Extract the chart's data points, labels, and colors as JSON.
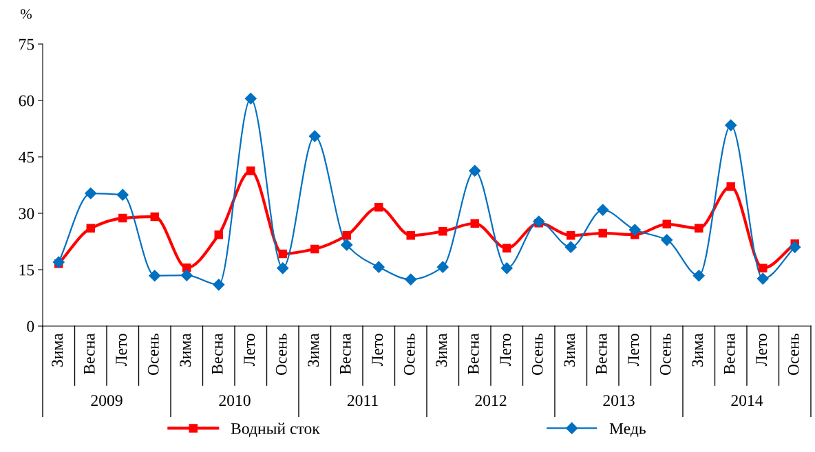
{
  "chart_data": {
    "type": "line",
    "ylabel": "%",
    "categories": [
      "Зима",
      "Весна",
      "Лето",
      "Осень",
      "Зима",
      "Весна",
      "Лето",
      "Осень",
      "Зима",
      "Весна",
      "Лето",
      "Осень",
      "Зима",
      "Весна",
      "Лето",
      "Осень",
      "Зима",
      "Весна",
      "Лето",
      "Осень",
      "Зима",
      "Весна",
      "Лето",
      "Осень"
    ],
    "annotations": [
      "2009",
      "2010",
      "2011",
      "2012",
      "2013",
      "2014"
    ],
    "series": [
      {
        "name": "Водный сток",
        "color": "#ff0000",
        "marker": "square",
        "values": [
          16.6,
          26.0,
          28.7,
          29.1,
          15.5,
          24.3,
          41.3,
          19.2,
          20.5,
          24.1,
          31.6,
          24.1,
          25.2,
          27.3,
          20.7,
          27.4,
          24.1,
          24.7,
          24.3,
          27.1,
          26.0,
          37.1,
          15.4,
          21.9
        ]
      },
      {
        "name": "Медь",
        "color": "#0070c0",
        "marker": "diamond",
        "values": [
          17.0,
          35.3,
          34.9,
          13.4,
          13.5,
          11.0,
          60.5,
          15.4,
          50.5,
          21.6,
          15.7,
          12.4,
          15.7,
          41.3,
          15.4,
          27.8,
          21.0,
          30.9,
          25.6,
          22.9,
          13.4,
          53.4,
          12.6,
          21.0
        ]
      }
    ],
    "ylim": [
      0,
      75
    ],
    "yticks": [
      0,
      15,
      30,
      45,
      60,
      75
    ],
    "grid": false,
    "legend": "bottom"
  }
}
